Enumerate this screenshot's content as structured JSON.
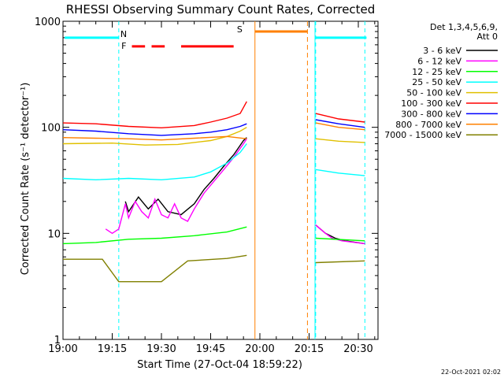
{
  "chart_data": {
    "type": "line",
    "title": "RHESSI Observing Summary Count Rates, Corrected",
    "xlabel": "Start Time (27-Oct-04 18:59:22)",
    "ylabel": "Corrected Count Rate (s⁻¹ detector⁻¹)",
    "yscale": "log",
    "ylim": [
      1,
      1000
    ],
    "xlim_minutes": [
      0,
      96
    ],
    "x_ticks": [
      "19:00",
      "19:15",
      "19:30",
      "19:45",
      "20:00",
      "20:15",
      "20:30"
    ],
    "y_ticks": [
      "1",
      "10",
      "100",
      "1000"
    ],
    "timestamp": "22-Oct-2021 02:02",
    "legend_header": [
      "Det 1,3,4,5,6,9,",
      "Att 0"
    ],
    "flags": [
      {
        "label": "N",
        "color": "#00ffff"
      },
      {
        "label": "F",
        "color": "#ff0000"
      },
      {
        "label": "S",
        "color": "#ff8000"
      }
    ],
    "data_gap_minutes": [
      56,
      77
    ],
    "series": [
      {
        "name": "3 - 6 keV",
        "color": "#000000",
        "values": [
          [
            19,
            20
          ],
          [
            20,
            16
          ],
          [
            23,
            22
          ],
          [
            26,
            17
          ],
          [
            29,
            21
          ],
          [
            32,
            16
          ],
          [
            36,
            15
          ],
          [
            40,
            19
          ],
          [
            43,
            26
          ],
          [
            46,
            33
          ],
          [
            49,
            43
          ],
          [
            52,
            55
          ],
          [
            55,
            75
          ],
          [
            56,
            80
          ],
          [
            77,
            12
          ],
          [
            80,
            10
          ],
          [
            83,
            9
          ],
          [
            86,
            8.5
          ],
          [
            92,
            8
          ]
        ]
      },
      {
        "name": "6 - 12 keV",
        "color": "#ff00ff",
        "values": [
          [
            13,
            11
          ],
          [
            15,
            10
          ],
          [
            17,
            11
          ],
          [
            19,
            19
          ],
          [
            20,
            14
          ],
          [
            22,
            20
          ],
          [
            24,
            16
          ],
          [
            26,
            14
          ],
          [
            28,
            21
          ],
          [
            30,
            15
          ],
          [
            32,
            14
          ],
          [
            34,
            19
          ],
          [
            36,
            14
          ],
          [
            38,
            13
          ],
          [
            40,
            17
          ],
          [
            43,
            24
          ],
          [
            46,
            31
          ],
          [
            49,
            40
          ],
          [
            52,
            52
          ],
          [
            55,
            70
          ],
          [
            56,
            78
          ],
          [
            77,
            12
          ],
          [
            80,
            10
          ],
          [
            82,
            9
          ],
          [
            85,
            8.5
          ],
          [
            92,
            8
          ]
        ]
      },
      {
        "name": "12 - 25 keV",
        "color": "#00ff00",
        "values": [
          [
            0,
            8
          ],
          [
            10,
            8.2
          ],
          [
            20,
            8.8
          ],
          [
            30,
            9
          ],
          [
            40,
            9.5
          ],
          [
            50,
            10.3
          ],
          [
            56,
            11.5
          ],
          [
            77,
            9
          ],
          [
            92,
            8.5
          ]
        ]
      },
      {
        "name": "25 - 50 keV",
        "color": "#00ffff",
        "values": [
          [
            0,
            33
          ],
          [
            10,
            32
          ],
          [
            20,
            33
          ],
          [
            30,
            32
          ],
          [
            40,
            34
          ],
          [
            45,
            38
          ],
          [
            50,
            46
          ],
          [
            54,
            58
          ],
          [
            56,
            70
          ],
          [
            77,
            40
          ],
          [
            84,
            37
          ],
          [
            92,
            35
          ]
        ]
      },
      {
        "name": "50 - 100 keV",
        "color": "#e0c000",
        "values": [
          [
            0,
            70
          ],
          [
            15,
            71
          ],
          [
            25,
            68
          ],
          [
            35,
            69
          ],
          [
            45,
            75
          ],
          [
            50,
            82
          ],
          [
            54,
            92
          ],
          [
            56,
            100
          ],
          [
            77,
            78
          ],
          [
            84,
            74
          ],
          [
            92,
            72
          ]
        ]
      },
      {
        "name": "100 - 300 keV",
        "color": "#ff0000",
        "values": [
          [
            0,
            110
          ],
          [
            10,
            108
          ],
          [
            20,
            102
          ],
          [
            30,
            99
          ],
          [
            40,
            104
          ],
          [
            45,
            112
          ],
          [
            50,
            122
          ],
          [
            54,
            135
          ],
          [
            56,
            175
          ],
          [
            77,
            135
          ],
          [
            84,
            120
          ],
          [
            92,
            112
          ]
        ]
      },
      {
        "name": "300 - 800 keV",
        "color": "#0000ff",
        "values": [
          [
            0,
            95
          ],
          [
            10,
            92
          ],
          [
            20,
            87
          ],
          [
            30,
            84
          ],
          [
            40,
            87
          ],
          [
            45,
            90
          ],
          [
            50,
            95
          ],
          [
            54,
            102
          ],
          [
            56,
            108
          ],
          [
            77,
            118
          ],
          [
            84,
            108
          ],
          [
            92,
            100
          ]
        ]
      },
      {
        "name": "800 - 7000 keV",
        "color": "#ff8000",
        "values": [
          [
            0,
            80
          ],
          [
            10,
            79
          ],
          [
            20,
            78
          ],
          [
            30,
            76
          ],
          [
            40,
            79
          ],
          [
            50,
            82
          ],
          [
            56,
            78
          ],
          [
            77,
            110
          ],
          [
            84,
            100
          ],
          [
            92,
            95
          ]
        ]
      },
      {
        "name": "7000 - 15000 keV",
        "color": "#808000",
        "values": [
          [
            0,
            5.7
          ],
          [
            12,
            5.7
          ],
          [
            17,
            3.5
          ],
          [
            30,
            3.5
          ],
          [
            38,
            5.5
          ],
          [
            50,
            5.8
          ],
          [
            56,
            6.2
          ],
          [
            77,
            5.3
          ],
          [
            92,
            5.5
          ]
        ]
      }
    ]
  }
}
